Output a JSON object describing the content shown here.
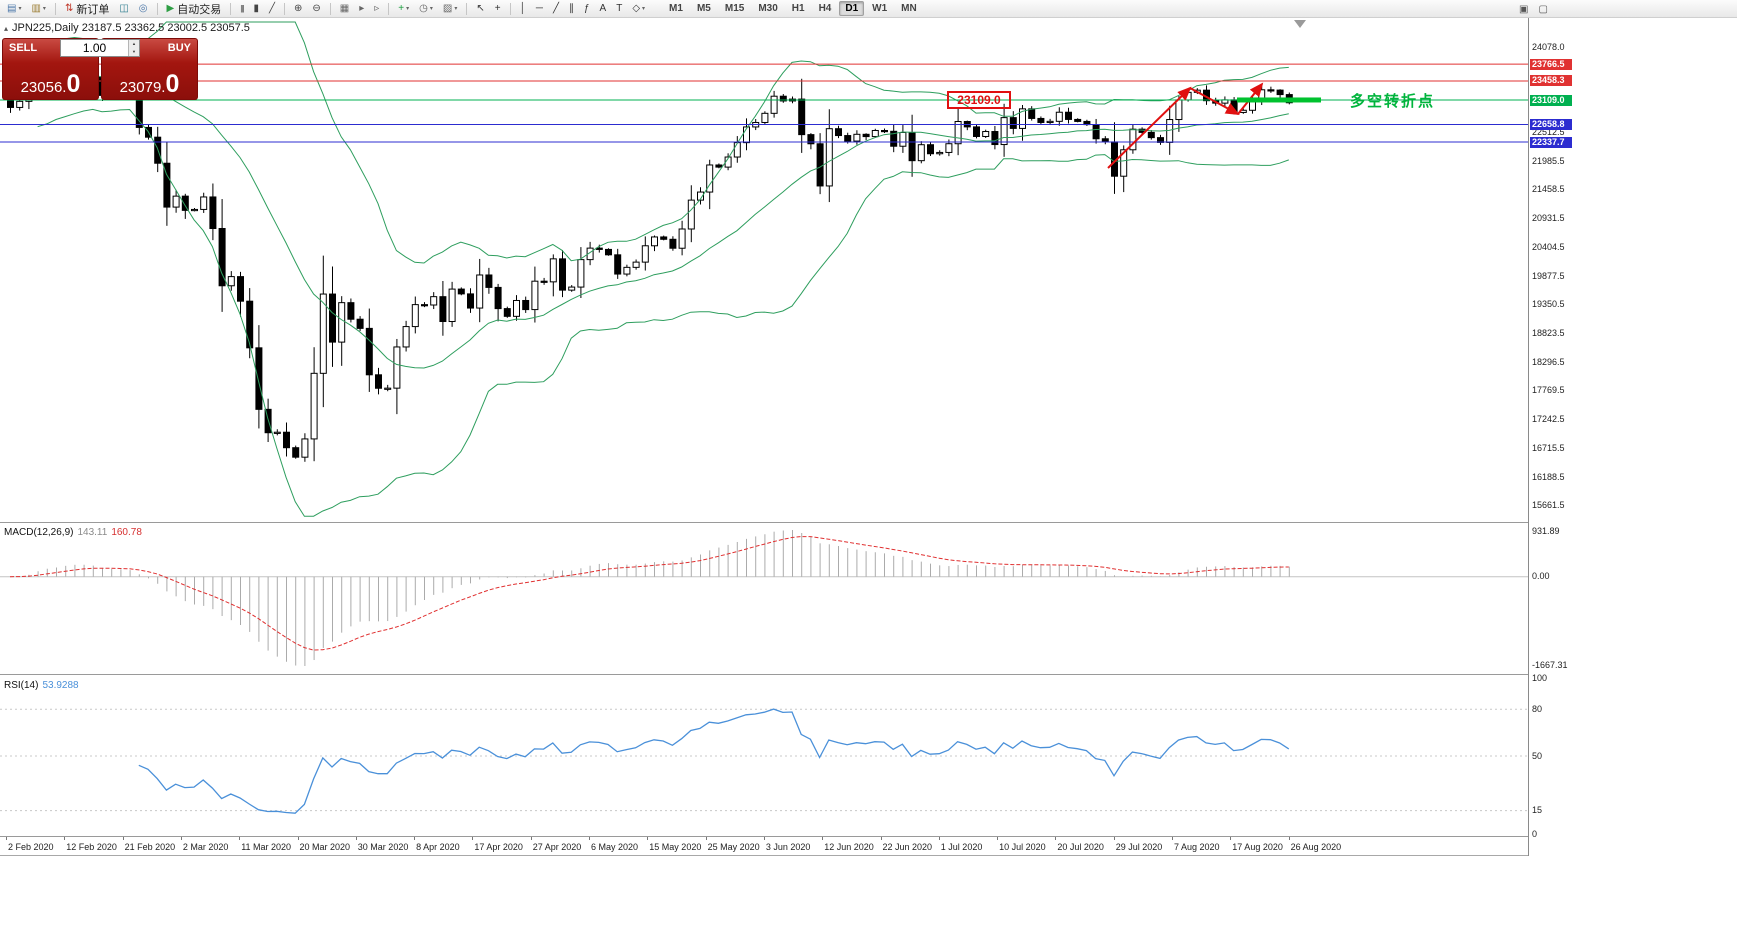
{
  "toolbar": {
    "buttons": [
      {
        "name": "new-chart",
        "glyph": "▤",
        "color": "#4a76a8",
        "caret": true
      },
      {
        "name": "profiles",
        "glyph": "▥",
        "color": "#9a7b2f",
        "caret": true
      },
      {
        "sep": true
      },
      {
        "name": "new-order",
        "glyph": "⇅",
        "color": "#c0392b",
        "label": "新订单"
      },
      {
        "name": "market-watch",
        "glyph": "◫",
        "color": "#2e7d8f"
      },
      {
        "name": "navigator",
        "glyph": "◎",
        "color": "#4a76a8"
      },
      {
        "sep": true
      },
      {
        "name": "autotrading",
        "glyph": "▶",
        "color": "#2e9e44",
        "label": "自动交易"
      },
      {
        "sep": true
      },
      {
        "name": "bar-chart-type",
        "glyph": "|||",
        "color": "#444",
        "small": true
      },
      {
        "name": "candlestick-type",
        "glyph": "▮",
        "color": "#444"
      },
      {
        "name": "line-chart-type",
        "glyph": "╱",
        "color": "#444"
      },
      {
        "sep": true
      },
      {
        "name": "zoom-in",
        "glyph": "⊕",
        "color": "#444"
      },
      {
        "name": "zoom-out",
        "glyph": "⊖",
        "color": "#444"
      },
      {
        "sep": true
      },
      {
        "name": "tile-windows",
        "glyph": "▦",
        "color": "#666"
      },
      {
        "name": "auto-scroll",
        "glyph": "▸",
        "color": "#666"
      },
      {
        "name": "chart-shift",
        "glyph": "▹",
        "color": "#666"
      },
      {
        "sep": true
      },
      {
        "name": "indicators",
        "glyph": "+",
        "color": "#1d9e3f",
        "caret": true
      },
      {
        "name": "periods",
        "glyph": "◷",
        "color": "#666",
        "caret": true
      },
      {
        "name": "templates",
        "glyph": "▨",
        "color": "#666",
        "caret": true
      },
      {
        "sep": true
      },
      {
        "name": "cursor",
        "glyph": "↖",
        "color": "#333"
      },
      {
        "name": "crosshair",
        "glyph": "+",
        "color": "#333"
      },
      {
        "sep": true
      },
      {
        "name": "vertical-line",
        "glyph": "│",
        "color": "#333"
      },
      {
        "name": "horizontal-line",
        "glyph": "─",
        "color": "#333"
      },
      {
        "name": "trendline",
        "glyph": "╱",
        "color": "#333"
      },
      {
        "name": "equidistant-channel",
        "glyph": "∥",
        "color": "#333"
      },
      {
        "name": "fibonacci-retracement",
        "glyph": "ƒ",
        "color": "#333"
      },
      {
        "name": "text",
        "glyph": "A",
        "color": "#333"
      },
      {
        "name": "text-label",
        "glyph": "T",
        "color": "#333"
      },
      {
        "name": "arrows",
        "glyph": "◇",
        "color": "#333",
        "caret": true
      }
    ],
    "timeframes": [
      "M1",
      "M5",
      "M15",
      "M30",
      "H1",
      "H4",
      "D1",
      "W1",
      "MN"
    ],
    "active_timeframe": "D1",
    "right_buttons": [
      {
        "name": "data-window",
        "glyph": "▣"
      },
      {
        "name": "fullscreen",
        "glyph": "▢"
      }
    ]
  },
  "chart": {
    "info": "JPN225,Daily  23187.5 23362.5 23002.5 23057.5"
  },
  "one_click": {
    "sell_label": "SELL",
    "buy_label": "BUY",
    "volume": "1.00",
    "sell_price_int": "23056.",
    "sell_price_frac": "0",
    "buy_price_int": "23079.",
    "buy_price_frac": "0"
  },
  "annotations": {
    "price_box": "23109.0",
    "turning_point": "多空转折点"
  },
  "macd_panel": {
    "name": "MACD(12,26,9)",
    "value": "143.11",
    "signal": "160.78"
  },
  "rsi_panel": {
    "name": "RSI(14)",
    "value": "53.9288"
  },
  "chart_data": {
    "type": "candlestick",
    "symbol": "JPN225",
    "period": "Daily",
    "ohlc_line": {
      "open": 23187.5,
      "high": 23362.5,
      "low": 23002.5,
      "close": 23057.5
    },
    "price_range": {
      "max": 24430,
      "min": 15400
    },
    "price_axis_labels": [
      "24078.0",
      "22512.5",
      "21985.5",
      "21458.5",
      "20931.5",
      "20404.5",
      "19877.5",
      "19350.5",
      "18823.5",
      "18296.5",
      "17769.5",
      "17242.5",
      "16715.5",
      "16188.5",
      "15661.5"
    ],
    "levels": [
      {
        "label": "23766.5",
        "value": 23766.5,
        "color": "#e03232"
      },
      {
        "label": "23458.3",
        "value": 23458.3,
        "color": "#e03232"
      },
      {
        "label": "23109.0",
        "value": 23109.0,
        "color": "#00b050"
      },
      {
        "label": "22658.8",
        "value": 22658.8,
        "color": "#2c2cd0"
      },
      {
        "label": "22337.7",
        "value": 22337.7,
        "color": "#2c2cd0"
      }
    ],
    "first_open": 23205,
    "closes": [
      22972,
      23084,
      23320,
      23873,
      23828,
      23686,
      23861,
      23828,
      23687,
      23523,
      23193,
      23401,
      23479,
      23387,
      22605,
      22426,
      21948,
      21143,
      21344,
      21083,
      21100,
      21329,
      20750,
      19699,
      19867,
      19416,
      18560,
      17431,
      17002,
      17011,
      16727,
      16553,
      16888,
      18092,
      19547,
      18665,
      19389,
      19085,
      18917,
      18065,
      17818,
      17820,
      18576,
      18950,
      19353,
      19346,
      19499,
      19043,
      19638,
      19550,
      19290,
      19897,
      19669,
      19280,
      19138,
      19429,
      19262,
      19783,
      19771,
      20193,
      19619,
      19675,
      20179,
      20390,
      20366,
      20267,
      19914,
      20037,
      20133,
      20433,
      20595,
      20552,
      20388,
      20741,
      21271,
      21419,
      21916,
      21877,
      22062,
      22326,
      22614,
      22696,
      22864,
      23178,
      23091,
      23125,
      22473,
      22305,
      21531,
      22582,
      22456,
      22355,
      22479,
      22437,
      22549,
      22534,
      22260,
      22512,
      21995,
      22288,
      22122,
      22146,
      22306,
      22714,
      22615,
      22439,
      22530,
      22291,
      22785,
      22587,
      22946,
      22770,
      22696,
      22717,
      22884,
      22752,
      22715,
      22657,
      22397,
      22339,
      21710,
      22195,
      22573,
      22514,
      22418,
      22330,
      22750,
      23110,
      23249,
      23289,
      23096,
      23051,
      23111,
      22880,
      22920,
      23100,
      23296,
      23290,
      23208,
      23058
    ],
    "dates": [
      "2 Feb 2020",
      "12 Feb 2020",
      "21 Feb 2020",
      "2 Mar 2020",
      "11 Mar 2020",
      "20 Mar 2020",
      "30 Mar 2020",
      "8 Apr 2020",
      "17 Apr 2020",
      "27 Apr 2020",
      "6 May 2020",
      "15 May 2020",
      "25 May 2020",
      "3 Jun 2020",
      "12 Jun 2020",
      "22 Jun 2020",
      "1 Jul 2020",
      "10 Jul 2020",
      "20 Jul 2020",
      "29 Jul 2020",
      "7 Aug 2020",
      "17 Aug 2020",
      "26 Aug 2020"
    ],
    "bollinger": {
      "period": 20,
      "deviation": 2,
      "color": "#2e9e5e"
    },
    "macd": {
      "fast": 12,
      "slow": 26,
      "signal_period": 9,
      "axis": {
        "max": "931.89",
        "zero": "0.00",
        "min": "-1667.31"
      }
    },
    "rsi": {
      "period": 14,
      "levels": [
        80,
        50,
        15
      ],
      "axis_labels": [
        "100",
        "80",
        "50",
        "15",
        "0"
      ],
      "color": "#4a90d9"
    }
  }
}
